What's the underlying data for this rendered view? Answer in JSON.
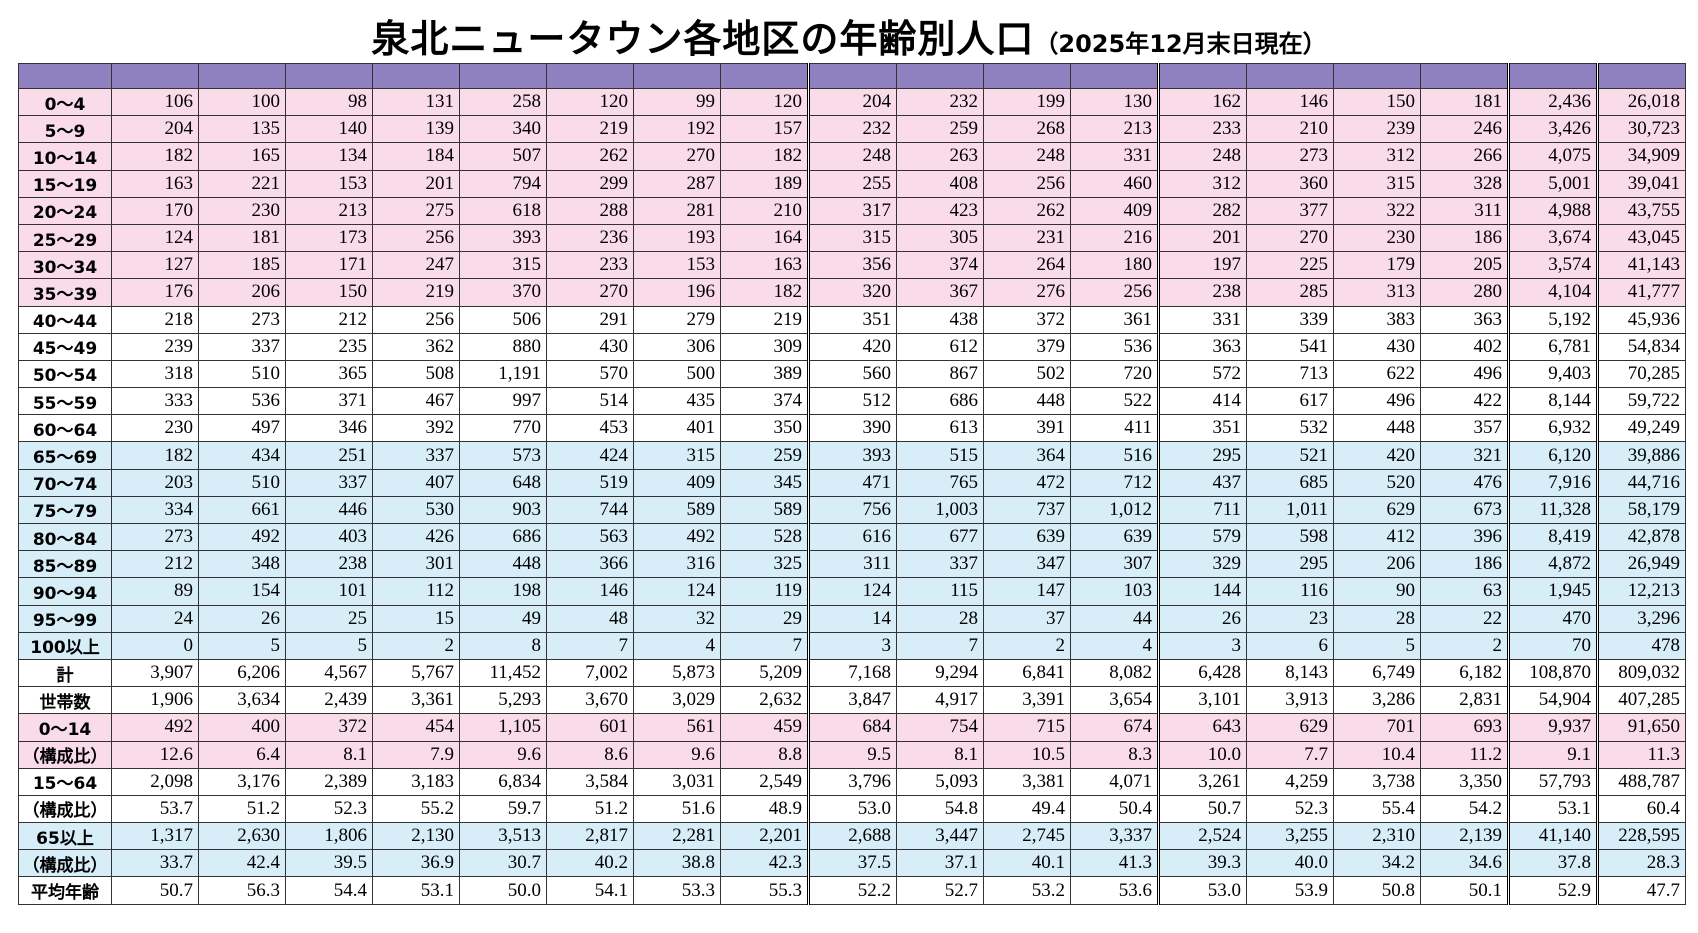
{
  "header": {
    "title": "泉北ニュータウン各地区の年齢別人口",
    "subtitle": "（2025年12月末日現在）"
  },
  "table": {
    "rows": [
      {
        "label": "0～4",
        "values": [
          "106",
          "100",
          "98",
          "131",
          "258",
          "120",
          "99",
          "120",
          "204",
          "232",
          "199",
          "130",
          "162",
          "146",
          "150",
          "181",
          "2,436",
          "26,018"
        ]
      },
      {
        "label": "5～9",
        "values": [
          "204",
          "135",
          "140",
          "139",
          "340",
          "219",
          "192",
          "157",
          "232",
          "259",
          "268",
          "213",
          "233",
          "210",
          "239",
          "246",
          "3,426",
          "30,723"
        ]
      },
      {
        "label": "10～14",
        "values": [
          "182",
          "165",
          "134",
          "184",
          "507",
          "262",
          "270",
          "182",
          "248",
          "263",
          "248",
          "331",
          "248",
          "273",
          "312",
          "266",
          "4,075",
          "34,909"
        ]
      },
      {
        "label": "15～19",
        "values": [
          "163",
          "221",
          "153",
          "201",
          "794",
          "299",
          "287",
          "189",
          "255",
          "408",
          "256",
          "460",
          "312",
          "360",
          "315",
          "328",
          "5,001",
          "39,041"
        ]
      },
      {
        "label": "20～24",
        "values": [
          "170",
          "230",
          "213",
          "275",
          "618",
          "288",
          "281",
          "210",
          "317",
          "423",
          "262",
          "409",
          "282",
          "377",
          "322",
          "311",
          "4,988",
          "43,755"
        ]
      },
      {
        "label": "25～29",
        "values": [
          "124",
          "181",
          "173",
          "256",
          "393",
          "236",
          "193",
          "164",
          "315",
          "305",
          "231",
          "216",
          "201",
          "270",
          "230",
          "186",
          "3,674",
          "43,045"
        ]
      },
      {
        "label": "30～34",
        "values": [
          "127",
          "185",
          "171",
          "247",
          "315",
          "233",
          "153",
          "163",
          "356",
          "374",
          "264",
          "180",
          "197",
          "225",
          "179",
          "205",
          "3,574",
          "41,143"
        ]
      },
      {
        "label": "35～39",
        "values": [
          "176",
          "206",
          "150",
          "219",
          "370",
          "270",
          "196",
          "182",
          "320",
          "367",
          "276",
          "256",
          "238",
          "285",
          "313",
          "280",
          "4,104",
          "41,777"
        ]
      },
      {
        "label": "40～44",
        "values": [
          "218",
          "273",
          "212",
          "256",
          "506",
          "291",
          "279",
          "219",
          "351",
          "438",
          "372",
          "361",
          "331",
          "339",
          "383",
          "363",
          "5,192",
          "45,936"
        ]
      },
      {
        "label": "45～49",
        "values": [
          "239",
          "337",
          "235",
          "362",
          "880",
          "430",
          "306",
          "309",
          "420",
          "612",
          "379",
          "536",
          "363",
          "541",
          "430",
          "402",
          "6,781",
          "54,834"
        ]
      },
      {
        "label": "50～54",
        "values": [
          "318",
          "510",
          "365",
          "508",
          "1,191",
          "570",
          "500",
          "389",
          "560",
          "867",
          "502",
          "720",
          "572",
          "713",
          "622",
          "496",
          "9,403",
          "70,285"
        ]
      },
      {
        "label": "55～59",
        "values": [
          "333",
          "536",
          "371",
          "467",
          "997",
          "514",
          "435",
          "374",
          "512",
          "686",
          "448",
          "522",
          "414",
          "617",
          "496",
          "422",
          "8,144",
          "59,722"
        ]
      },
      {
        "label": "60～64",
        "values": [
          "230",
          "497",
          "346",
          "392",
          "770",
          "453",
          "401",
          "350",
          "390",
          "613",
          "391",
          "411",
          "351",
          "532",
          "448",
          "357",
          "6,932",
          "49,249"
        ]
      },
      {
        "label": "65～69",
        "values": [
          "182",
          "434",
          "251",
          "337",
          "573",
          "424",
          "315",
          "259",
          "393",
          "515",
          "364",
          "516",
          "295",
          "521",
          "420",
          "321",
          "6,120",
          "39,886"
        ]
      },
      {
        "label": "70～74",
        "values": [
          "203",
          "510",
          "337",
          "407",
          "648",
          "519",
          "409",
          "345",
          "471",
          "765",
          "472",
          "712",
          "437",
          "685",
          "520",
          "476",
          "7,916",
          "44,716"
        ]
      },
      {
        "label": "75～79",
        "values": [
          "334",
          "661",
          "446",
          "530",
          "903",
          "744",
          "589",
          "589",
          "756",
          "1,003",
          "737",
          "1,012",
          "711",
          "1,011",
          "629",
          "673",
          "11,328",
          "58,179"
        ]
      },
      {
        "label": "80～84",
        "values": [
          "273",
          "492",
          "403",
          "426",
          "686",
          "563",
          "492",
          "528",
          "616",
          "677",
          "639",
          "639",
          "579",
          "598",
          "412",
          "396",
          "8,419",
          "42,878"
        ]
      },
      {
        "label": "85～89",
        "values": [
          "212",
          "348",
          "238",
          "301",
          "448",
          "366",
          "316",
          "325",
          "311",
          "337",
          "347",
          "307",
          "329",
          "295",
          "206",
          "186",
          "4,872",
          "26,949"
        ]
      },
      {
        "label": "90～94",
        "values": [
          "89",
          "154",
          "101",
          "112",
          "198",
          "146",
          "124",
          "119",
          "124",
          "115",
          "147",
          "103",
          "144",
          "116",
          "90",
          "63",
          "1,945",
          "12,213"
        ]
      },
      {
        "label": "95～99",
        "values": [
          "24",
          "26",
          "25",
          "15",
          "49",
          "48",
          "32",
          "29",
          "14",
          "28",
          "37",
          "44",
          "26",
          "23",
          "28",
          "22",
          "470",
          "3,296"
        ]
      },
      {
        "label": "100以上",
        "values": [
          "0",
          "5",
          "5",
          "2",
          "8",
          "7",
          "4",
          "7",
          "3",
          "7",
          "2",
          "4",
          "3",
          "6",
          "5",
          "2",
          "70",
          "478"
        ]
      },
      {
        "label": "計",
        "values": [
          "3,907",
          "6,206",
          "4,567",
          "5,767",
          "11,452",
          "7,002",
          "5,873",
          "5,209",
          "7,168",
          "9,294",
          "6,841",
          "8,082",
          "6,428",
          "8,143",
          "6,749",
          "6,182",
          "108,870",
          "809,032"
        ]
      },
      {
        "label": "世帯数",
        "values": [
          "1,906",
          "3,634",
          "2,439",
          "3,361",
          "5,293",
          "3,670",
          "3,029",
          "2,632",
          "3,847",
          "4,917",
          "3,391",
          "3,654",
          "3,101",
          "3,913",
          "3,286",
          "2,831",
          "54,904",
          "407,285"
        ]
      },
      {
        "label": "0～14",
        "values": [
          "492",
          "400",
          "372",
          "454",
          "1,105",
          "601",
          "561",
          "459",
          "684",
          "754",
          "715",
          "674",
          "643",
          "629",
          "701",
          "693",
          "9,937",
          "91,650"
        ]
      },
      {
        "label": "（構成比）",
        "values": [
          "12.6",
          "6.4",
          "8.1",
          "7.9",
          "9.6",
          "8.6",
          "9.6",
          "8.8",
          "9.5",
          "8.1",
          "10.5",
          "8.3",
          "10.0",
          "7.7",
          "10.4",
          "11.2",
          "9.1",
          "11.3"
        ]
      },
      {
        "label": "15～64",
        "values": [
          "2,098",
          "3,176",
          "2,389",
          "3,183",
          "6,834",
          "3,584",
          "3,031",
          "2,549",
          "3,796",
          "5,093",
          "3,381",
          "4,071",
          "3,261",
          "4,259",
          "3,738",
          "3,350",
          "57,793",
          "488,787"
        ]
      },
      {
        "label": "（構成比）",
        "values": [
          "53.7",
          "51.2",
          "52.3",
          "55.2",
          "59.7",
          "51.2",
          "51.6",
          "48.9",
          "53.0",
          "54.8",
          "49.4",
          "50.4",
          "50.7",
          "52.3",
          "55.4",
          "54.2",
          "53.1",
          "60.4"
        ]
      },
      {
        "label": "65以上",
        "values": [
          "1,317",
          "2,630",
          "1,806",
          "2,130",
          "3,513",
          "2,817",
          "2,281",
          "2,201",
          "2,688",
          "3,447",
          "2,745",
          "3,337",
          "2,524",
          "3,255",
          "2,310",
          "2,139",
          "41,140",
          "228,595"
        ]
      },
      {
        "label": "（構成比）",
        "values": [
          "33.7",
          "42.4",
          "39.5",
          "36.9",
          "30.7",
          "40.2",
          "38.8",
          "42.3",
          "37.5",
          "37.1",
          "40.1",
          "41.3",
          "39.3",
          "40.0",
          "34.2",
          "34.6",
          "37.8",
          "28.3"
        ]
      },
      {
        "label": "平均年齢",
        "values": [
          "50.7",
          "56.3",
          "54.4",
          "53.1",
          "50.0",
          "54.1",
          "53.3",
          "55.3",
          "52.2",
          "52.7",
          "53.2",
          "53.6",
          "53.0",
          "53.9",
          "50.8",
          "50.1",
          "52.9",
          "47.7"
        ]
      }
    ]
  }
}
